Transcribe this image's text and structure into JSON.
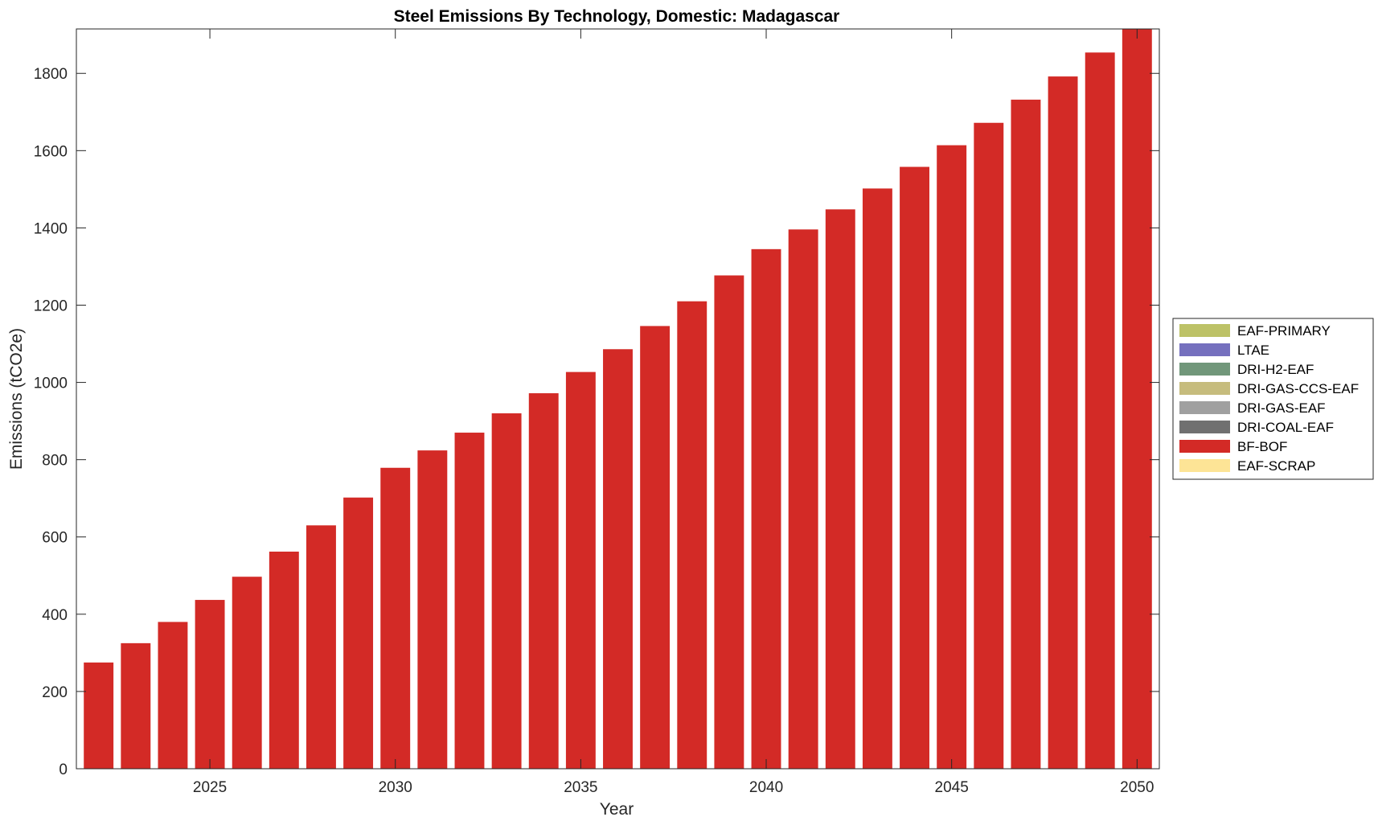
{
  "chart_data": {
    "type": "bar",
    "title": "Steel Emissions By Technology, Domestic: Madagascar",
    "xlabel": "Year",
    "ylabel": "Emissions (tCO2e)",
    "x": [
      2022,
      2023,
      2024,
      2025,
      2026,
      2027,
      2028,
      2029,
      2030,
      2031,
      2032,
      2033,
      2034,
      2035,
      2036,
      2037,
      2038,
      2039,
      2040,
      2041,
      2042,
      2043,
      2044,
      2045,
      2046,
      2047,
      2048,
      2049,
      2050
    ],
    "xlim": [
      2021.4,
      2050.6
    ],
    "ylim": [
      0,
      1915
    ],
    "xticks": [
      2025,
      2030,
      2035,
      2040,
      2045,
      2050
    ],
    "yticks": [
      0,
      200,
      400,
      600,
      800,
      1000,
      1200,
      1400,
      1600,
      1800
    ],
    "grid": false,
    "legend_position": "outside-right",
    "series": [
      {
        "name": "EAF-PRIMARY",
        "color": "#bdc267",
        "values": [
          0,
          0,
          0,
          0,
          0,
          0,
          0,
          0,
          0,
          0,
          0,
          0,
          0,
          0,
          0,
          0,
          0,
          0,
          0,
          0,
          0,
          0,
          0,
          0,
          0,
          0,
          0,
          0,
          0
        ]
      },
      {
        "name": "LTAE",
        "color": "#7570be",
        "values": [
          0,
          0,
          0,
          0,
          0,
          0,
          0,
          0,
          0,
          0,
          0,
          0,
          0,
          0,
          0,
          0,
          0,
          0,
          0,
          0,
          0,
          0,
          0,
          0,
          0,
          0,
          0,
          0,
          0
        ]
      },
      {
        "name": "DRI-H2-EAF",
        "color": "#71977a",
        "values": [
          0,
          0,
          0,
          0,
          0,
          0,
          0,
          0,
          0,
          0,
          0,
          0,
          0,
          0,
          0,
          0,
          0,
          0,
          0,
          0,
          0,
          0,
          0,
          0,
          0,
          0,
          0,
          0,
          0
        ]
      },
      {
        "name": "DRI-GAS-CCS-EAF",
        "color": "#c6bc7d",
        "values": [
          0,
          0,
          0,
          0,
          0,
          0,
          0,
          0,
          0,
          0,
          0,
          0,
          0,
          0,
          0,
          0,
          0,
          0,
          0,
          0,
          0,
          0,
          0,
          0,
          0,
          0,
          0,
          0,
          0
        ]
      },
      {
        "name": "DRI-GAS-EAF",
        "color": "#a0a0a0",
        "values": [
          0,
          0,
          0,
          0,
          0,
          0,
          0,
          0,
          0,
          0,
          0,
          0,
          0,
          0,
          0,
          0,
          0,
          0,
          0,
          0,
          0,
          0,
          0,
          0,
          0,
          0,
          0,
          0,
          0
        ]
      },
      {
        "name": "DRI-COAL-EAF",
        "color": "#707070",
        "values": [
          0,
          0,
          0,
          0,
          0,
          0,
          0,
          0,
          0,
          0,
          0,
          0,
          0,
          0,
          0,
          0,
          0,
          0,
          0,
          0,
          0,
          0,
          0,
          0,
          0,
          0,
          0,
          0,
          0
        ]
      },
      {
        "name": "BF-BOF",
        "color": "#d32a26",
        "values": [
          275,
          325,
          380,
          437,
          497,
          562,
          630,
          702,
          779,
          824,
          870,
          920,
          972,
          1027,
          1086,
          1146,
          1210,
          1277,
          1345,
          1396,
          1448,
          1502,
          1558,
          1614,
          1672,
          1732,
          1792,
          1854,
          1916
        ]
      },
      {
        "name": "EAF-SCRAP",
        "color": "#fde496",
        "values": [
          0,
          0,
          0,
          0,
          0,
          0,
          0,
          0,
          0,
          0,
          0,
          0,
          0,
          0,
          0,
          0,
          0,
          0,
          0,
          0,
          0,
          0,
          0,
          0,
          0,
          0,
          0,
          0,
          0
        ]
      }
    ]
  }
}
